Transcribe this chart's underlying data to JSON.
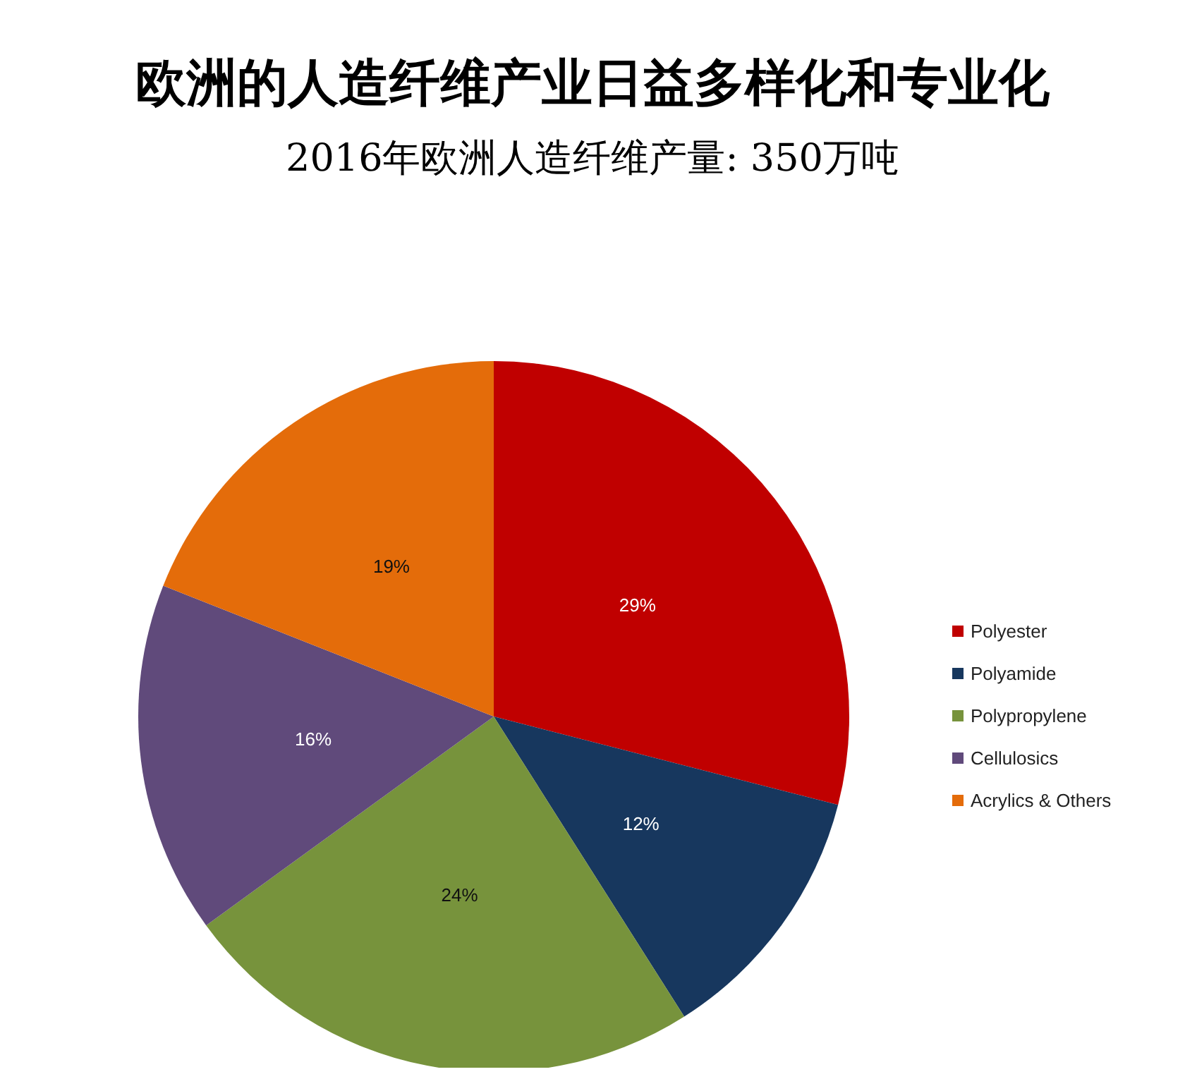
{
  "chart_data": {
    "type": "pie",
    "title": "欧洲的人造纤维产业日益多样化和专业化",
    "subtitle": "2016年欧洲人造纤维产量: 350万吨",
    "categories": [
      "Polyester",
      "Polyamide",
      "Polypropylene",
      "Cellulosics",
      "Acrylics & Others"
    ],
    "values": [
      29,
      12,
      24,
      16,
      19
    ],
    "colors": [
      "#c00000",
      "#17375e",
      "#77933c",
      "#604a7b",
      "#e46c0a"
    ],
    "value_labels": [
      "29%",
      "12%",
      "24%",
      "16%",
      "19%"
    ],
    "legend": "right"
  }
}
